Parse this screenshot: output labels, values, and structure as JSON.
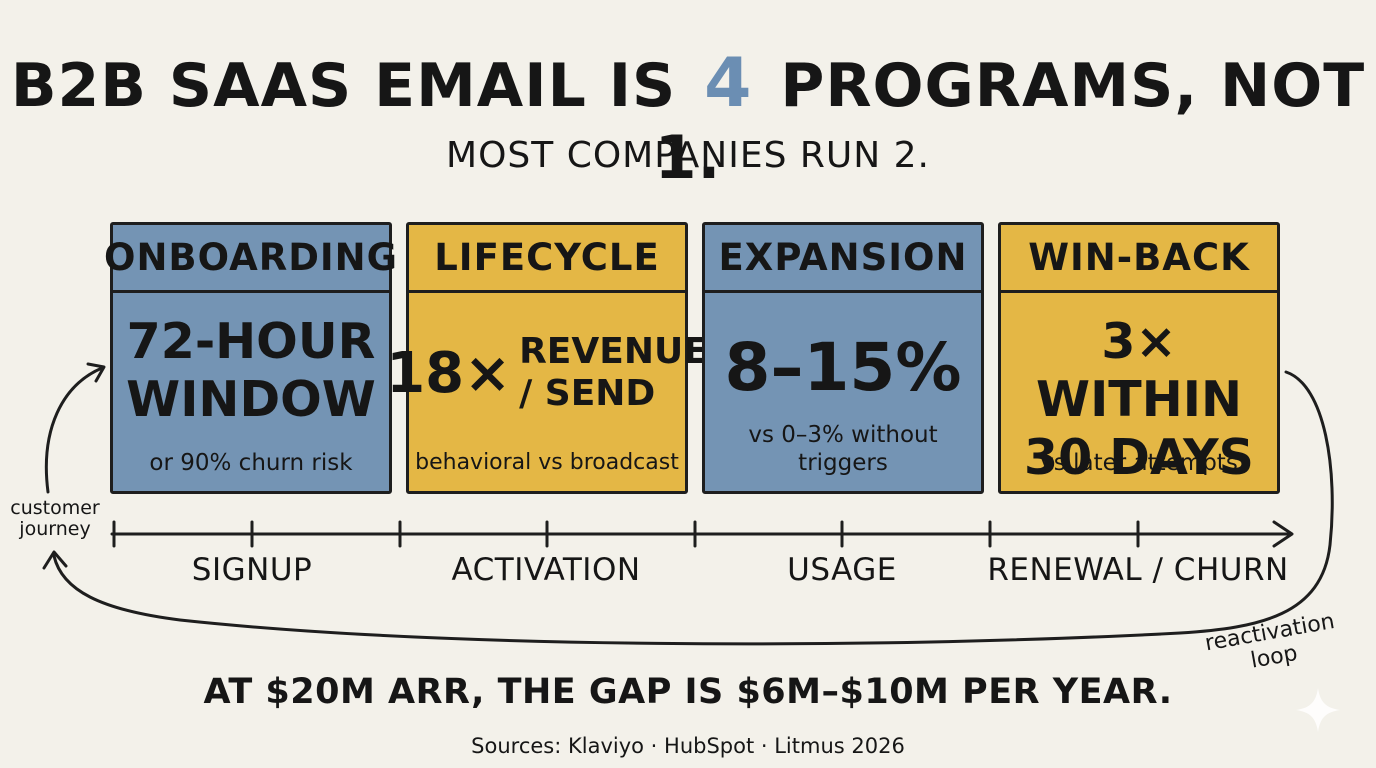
{
  "title": {
    "before": "B2B SAAS EMAIL IS",
    "number": "4",
    "after": "PROGRAMS, NOT 1."
  },
  "subtitle": "MOST COMPANIES RUN 2.",
  "programs": [
    {
      "name": "ONBOARDING",
      "metric_line1": "72-HOUR",
      "metric_line2": "WINDOW",
      "note": "or 90% churn risk",
      "color": "#7494b4"
    },
    {
      "name": "LIFECYCLE",
      "metric_mult": "18×",
      "metric_line1": "REVENUE",
      "metric_line2": "/ SEND",
      "note": "behavioral vs broadcast",
      "color": "#e4b745"
    },
    {
      "name": "EXPANSION",
      "metric": "8–15%",
      "note_line1": "vs 0–3% without",
      "note_line2": "triggers",
      "color": "#7494b4"
    },
    {
      "name": "WIN-BACK",
      "metric_line1": "3× WITHIN",
      "metric_line2": "30 DAYS",
      "note": "vs later attempts",
      "color": "#e4b745"
    }
  ],
  "journey": {
    "label_line1": "customer",
    "label_line2": "journey",
    "stages": [
      "SIGNUP",
      "ACTIVATION",
      "USAGE",
      "RENEWAL / CHURN"
    ],
    "loop_label_line1": "reactivation",
    "loop_label_line2": "loop"
  },
  "bottom_line": "AT $20M ARR, THE GAP IS $6M–$10M PER YEAR.",
  "sources": "Sources: Klaviyo · HubSpot · Litmus 2026"
}
